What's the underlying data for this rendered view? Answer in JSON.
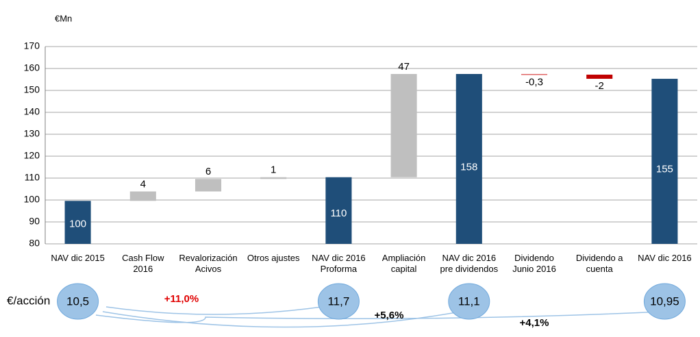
{
  "chart_data": {
    "type": "waterfall",
    "unit_label": "€Mn",
    "categories": [
      "NAV dic 2015",
      "Cash Flow\n2016",
      "Revalorización\nAcivos",
      "Otros ajustes",
      "NAV dic 2016\nProforma",
      "Ampliación\ncapital",
      "NAV dic 2016\npre dividendos",
      "Dividendo\nJunio 2016",
      "Dividendo a\ncuenta",
      "NAV dic 2016"
    ],
    "values": [
      99.6,
      4.3,
      5.7,
      0.8,
      110.4,
      47.1,
      157.5,
      -0.3,
      -1.9,
      155.3
    ],
    "value_labels": [
      "100",
      "4",
      "6",
      "1",
      "110",
      "47",
      "158",
      "-0,3",
      "-2",
      "155"
    ],
    "bar_kinds": [
      "total",
      "delta",
      "delta",
      "delta",
      "total",
      "delta",
      "total",
      "delta",
      "delta",
      "total"
    ],
    "colors": [
      "#1f4e79",
      "#bfbfbf",
      "#bfbfbf",
      "#bfbfbf",
      "#1f4e79",
      "#bfbfbf",
      "#1f4e79",
      "#e06666",
      "#c00000",
      "#1f4e79"
    ],
    "ylim": [
      80,
      170
    ],
    "yticks": [
      80,
      90,
      100,
      110,
      120,
      130,
      140,
      150,
      160,
      170
    ],
    "grid": true,
    "per_share": {
      "label": "€/acción",
      "category_index": [
        0,
        4,
        6,
        9
      ],
      "values": [
        10.5,
        11.7,
        11.1,
        10.95
      ],
      "value_labels": [
        "10,5",
        "11,7",
        "11,1",
        "10,95"
      ],
      "color": "#9dc3e6",
      "changes": [
        "+11,0%",
        "+5,6%",
        "+4,1%"
      ]
    }
  }
}
